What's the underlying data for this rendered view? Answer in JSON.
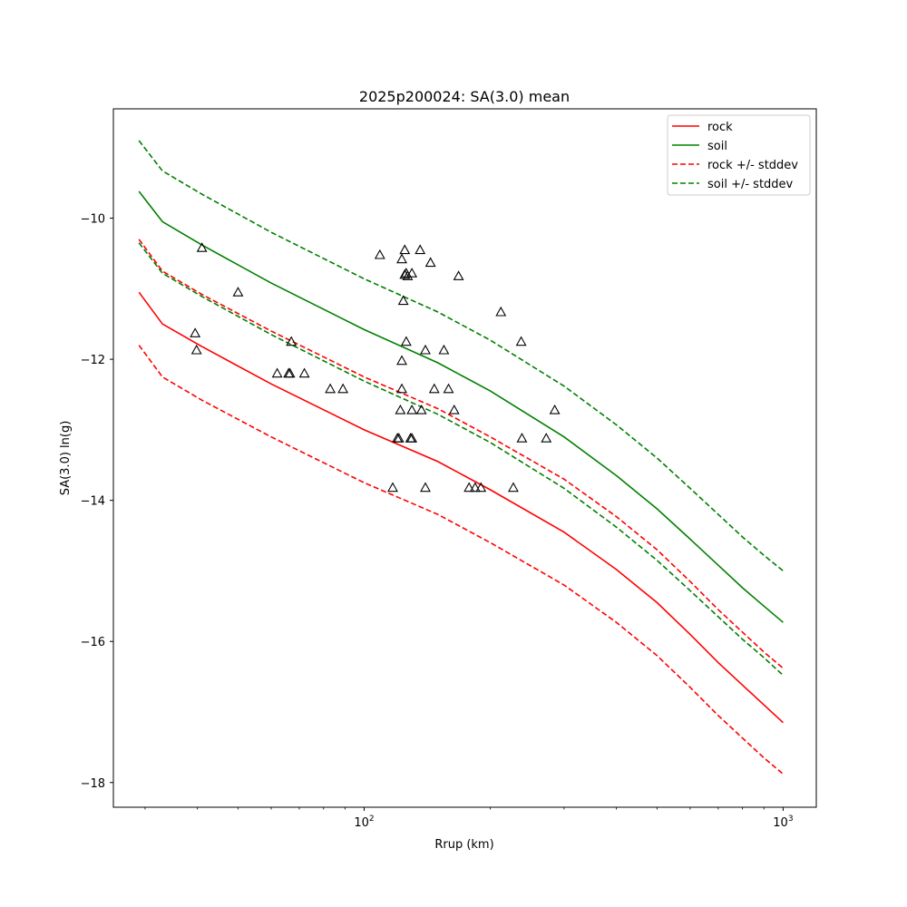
{
  "chart_data": {
    "type": "line",
    "title": "2025p200024: SA(3.0) mean",
    "xlabel": "Rrup (km)",
    "ylabel": "SA(3.0) ln(g)",
    "xscale": "log",
    "xlim": [
      25.2,
      1200
    ],
    "ylim": [
      -18.35,
      -8.45
    ],
    "x_ticks": [
      {
        "value": 100,
        "base": "10",
        "exp": "2"
      },
      {
        "value": 1000,
        "base": "10",
        "exp": "3"
      }
    ],
    "y_ticks": [
      -10,
      -12,
      -14,
      -16,
      -18
    ],
    "y_tick_labels": [
      "−10",
      "−12",
      "−14",
      "−16",
      "−18"
    ],
    "grid": false,
    "legend_position": "top-right",
    "series": [
      {
        "name": "rock",
        "color": "#ff0000",
        "dash": "solid",
        "x": [
          29,
          33,
          41,
          60,
          100,
          150,
          200,
          300,
          400,
          500,
          600,
          700,
          800,
          900,
          1000
        ],
        "y": [
          -11.05,
          -11.5,
          -11.82,
          -12.35,
          -13.0,
          -13.45,
          -13.85,
          -14.45,
          -14.98,
          -15.45,
          -15.9,
          -16.3,
          -16.62,
          -16.9,
          -17.15
        ]
      },
      {
        "name": "soil",
        "color": "#008000",
        "dash": "solid",
        "x": [
          29,
          33,
          41,
          60,
          100,
          150,
          200,
          300,
          400,
          500,
          600,
          700,
          800,
          900,
          1000
        ],
        "y": [
          -9.62,
          -10.05,
          -10.38,
          -10.92,
          -11.58,
          -12.05,
          -12.45,
          -13.1,
          -13.65,
          -14.12,
          -14.55,
          -14.92,
          -15.24,
          -15.5,
          -15.73
        ]
      },
      {
        "name": "rock +/- stddev",
        "color": "#ff0000",
        "dash": "dashed",
        "x": [
          29,
          33,
          41,
          60,
          100,
          150,
          200,
          300,
          400,
          500,
          600,
          700,
          800,
          900,
          1000
        ],
        "y": [
          -10.3,
          -10.75,
          -11.08,
          -11.6,
          -12.25,
          -12.7,
          -13.1,
          -13.7,
          -14.23,
          -14.7,
          -15.15,
          -15.55,
          -15.87,
          -16.15,
          -16.38
        ]
      },
      {
        "name": "rock +/- stddev",
        "color": "#ff0000",
        "dash": "dashed",
        "hide_legend": true,
        "x": [
          29,
          33,
          41,
          60,
          100,
          150,
          200,
          300,
          400,
          500,
          600,
          700,
          800,
          900,
          1000
        ],
        "y": [
          -11.8,
          -12.25,
          -12.58,
          -13.1,
          -13.75,
          -14.2,
          -14.6,
          -15.2,
          -15.73,
          -16.2,
          -16.65,
          -17.05,
          -17.37,
          -17.65,
          -17.88
        ]
      },
      {
        "name": "soil +/- stddev",
        "color": "#008000",
        "dash": "dashed",
        "x": [
          29,
          33,
          41,
          60,
          100,
          150,
          200,
          300,
          400,
          500,
          600,
          700,
          800,
          900,
          1000
        ],
        "y": [
          -8.9,
          -9.33,
          -9.66,
          -10.2,
          -10.86,
          -11.33,
          -11.73,
          -12.38,
          -12.93,
          -13.4,
          -13.83,
          -14.2,
          -14.52,
          -14.78,
          -15.0
        ]
      },
      {
        "name": "soil +/- stddev",
        "color": "#008000",
        "dash": "dashed",
        "hide_legend": true,
        "x": [
          29,
          33,
          41,
          60,
          100,
          150,
          200,
          300,
          400,
          500,
          600,
          700,
          800,
          900,
          1000
        ],
        "y": [
          -10.35,
          -10.78,
          -11.11,
          -11.65,
          -12.31,
          -12.78,
          -13.18,
          -13.83,
          -14.38,
          -14.85,
          -15.28,
          -15.65,
          -15.97,
          -16.23,
          -16.48
        ]
      }
    ],
    "observations": {
      "marker": "triangle-open",
      "color": "#000000",
      "points": [
        [
          41,
          -10.42
        ],
        [
          39.5,
          -11.63
        ],
        [
          39.8,
          -11.87
        ],
        [
          50,
          -11.05
        ],
        [
          62,
          -12.2
        ],
        [
          66,
          -12.2
        ],
        [
          66.5,
          -12.2
        ],
        [
          67,
          -11.75
        ],
        [
          72,
          -12.2
        ],
        [
          83,
          -12.42
        ],
        [
          89,
          -12.42
        ],
        [
          109,
          -10.52
        ],
        [
          117,
          -13.82
        ],
        [
          120,
          -13.12
        ],
        [
          121,
          -13.12
        ],
        [
          122,
          -12.72
        ],
        [
          123,
          -12.42
        ],
        [
          123,
          -12.02
        ],
        [
          123,
          -10.58
        ],
        [
          124,
          -11.17
        ],
        [
          125,
          -10.45
        ],
        [
          125,
          -10.8
        ],
        [
          126,
          -10.78
        ],
        [
          126,
          -11.75
        ],
        [
          127,
          -10.82
        ],
        [
          129,
          -13.12
        ],
        [
          130,
          -13.12
        ],
        [
          130,
          -12.72
        ],
        [
          130,
          -10.78
        ],
        [
          136,
          -10.45
        ],
        [
          137,
          -12.72
        ],
        [
          140,
          -11.87
        ],
        [
          140,
          -13.82
        ],
        [
          144,
          -10.63
        ],
        [
          147,
          -12.42
        ],
        [
          155,
          -11.87
        ],
        [
          159,
          -12.42
        ],
        [
          164,
          -12.72
        ],
        [
          168,
          -10.82
        ],
        [
          178,
          -13.82
        ],
        [
          184,
          -13.82
        ],
        [
          190,
          -13.82
        ],
        [
          212,
          -11.33
        ],
        [
          227,
          -13.82
        ],
        [
          237,
          -11.75
        ],
        [
          238,
          -13.12
        ],
        [
          272,
          -13.12
        ],
        [
          285,
          -12.72
        ]
      ]
    }
  }
}
